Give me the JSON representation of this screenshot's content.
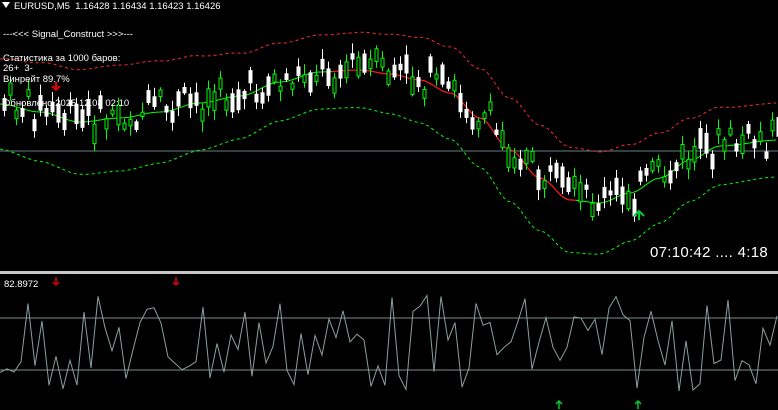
{
  "header": {
    "symbol": "EURUSD,M5",
    "open": "1.16428",
    "high": "1.16434",
    "low": "1.16423",
    "close": "1.16426"
  },
  "panel": {
    "title": "---<<< Signal_Construct >>>---",
    "stats_line": "Статистика за 1000 баров:",
    "score_line": "26+  3-",
    "winrate_line": "Винрейт 89.7%",
    "updated_line": "Обновлено 2025.12.08 02:10"
  },
  "clock": {
    "time": "07:10:42",
    "dots": "....",
    "countdown": "4:18"
  },
  "oscillator": {
    "value_label": "82.8972"
  },
  "colors": {
    "bull_candle": "#00ff00",
    "bear_candle": "#ffffff",
    "mid_line_down": "#ff1a1a",
    "mid_line_up": "#00ff00",
    "upper_band": "#ff2a2a",
    "lower_band": "#00ff00",
    "signal_up": "#00cc33",
    "signal_down": "#e00000",
    "osc_line": "#8aa0a0",
    "level_line": "#7f8c8d"
  }
}
